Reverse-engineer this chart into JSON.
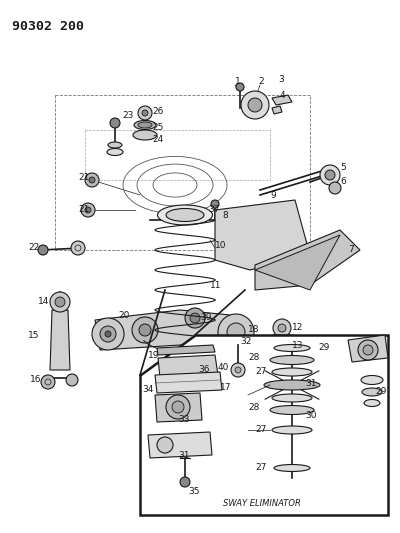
{
  "title": "90302 200",
  "fig_width": 4.0,
  "fig_height": 5.33,
  "dpi": 100,
  "sway_label": "SWAY ELIMINATOR",
  "lc": "#1a1a1a",
  "bg": "white"
}
